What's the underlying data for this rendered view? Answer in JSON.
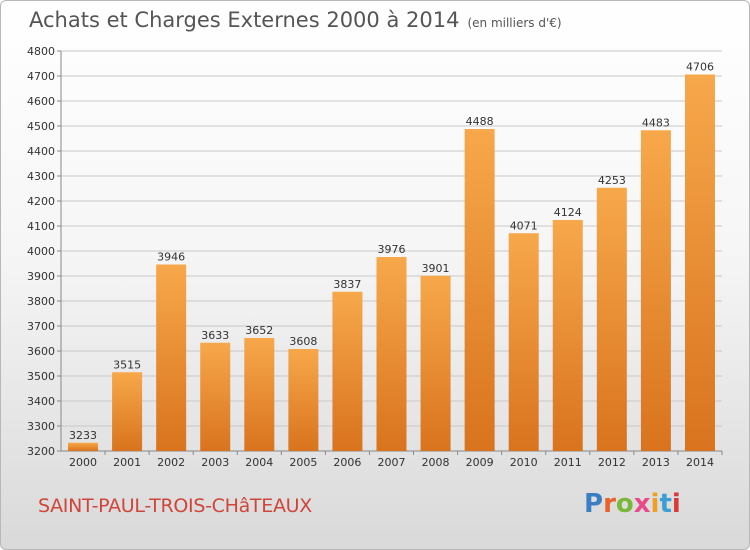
{
  "header": {
    "title": "Achats et Charges Externes 2000 à 2014",
    "subtitle": "(en milliers d'€)"
  },
  "footer": {
    "city": "SAINT-PAUL-TROIS-CHâTEAUX",
    "logo": "Proxiti",
    "logo_colors": [
      "#3a7fc4",
      "#e8622a",
      "#7ab83a",
      "#e84a8a",
      "#f0a020",
      "#3a9fd4",
      "#d83a3a"
    ]
  },
  "colors": {
    "bar_top": "#f7a84a",
    "bar_bottom": "#d9731e",
    "grid": "#c8c8c8"
  },
  "chart_data": {
    "type": "bar",
    "title": "Achats et Charges Externes 2000 à 2014",
    "subtitle": "(en milliers d'€)",
    "categories": [
      "2000",
      "2001",
      "2002",
      "2003",
      "2004",
      "2005",
      "2006",
      "2007",
      "2008",
      "2009",
      "2010",
      "2011",
      "2012",
      "2013",
      "2014"
    ],
    "values": [
      3233,
      3515,
      3946,
      3633,
      3652,
      3608,
      3837,
      3976,
      3901,
      4488,
      4071,
      4124,
      4253,
      4483,
      4706
    ],
    "ylim": [
      3200,
      4800
    ],
    "yticks": [
      3200,
      3300,
      3400,
      3500,
      3600,
      3700,
      3800,
      3900,
      4000,
      4100,
      4200,
      4300,
      4400,
      4500,
      4600,
      4700,
      4800
    ],
    "grid": true
  }
}
